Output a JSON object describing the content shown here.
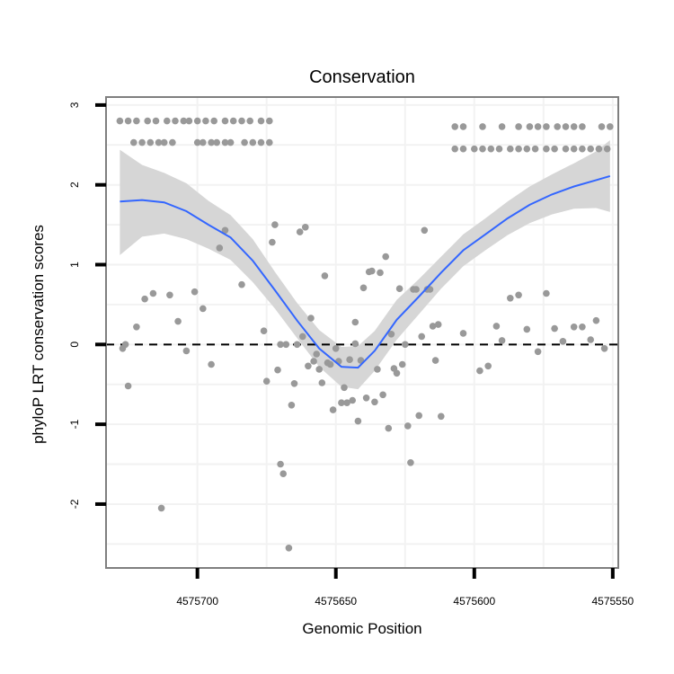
{
  "chart_data": {
    "type": "scatter",
    "title": "Conservation",
    "xlabel": "Genomic Position",
    "ylabel": "phyloP LRT conservation scores",
    "xlim": [
      4575733,
      4575548
    ],
    "ylim": [
      -2.8,
      3.1
    ],
    "x_reversed": true,
    "xticks": [
      4575700,
      4575650,
      4575600,
      4575550
    ],
    "xtick_labels": [
      "4575700",
      "4575650",
      "4575600",
      "4575550"
    ],
    "yticks": [
      -2,
      -1,
      0,
      1,
      2,
      3
    ],
    "ytick_labels": [
      "-2",
      "-1",
      "0",
      "1",
      "2",
      "3"
    ],
    "grid": true,
    "reference_line": {
      "y": 0,
      "style": "dashed"
    },
    "colors": {
      "points": "#999999",
      "smooth": "#3366ff",
      "band": "#d6d6d6",
      "grid": "#f2f2f2",
      "border": "#7f7f7f"
    },
    "series": [
      {
        "name": "scores",
        "points": [
          [
            4575728,
            2.8
          ],
          [
            4575725,
            2.8
          ],
          [
            4575722,
            2.8
          ],
          [
            4575718,
            2.8
          ],
          [
            4575715,
            2.8
          ],
          [
            4575711,
            2.8
          ],
          [
            4575708,
            2.8
          ],
          [
            4575705,
            2.8
          ],
          [
            4575703,
            2.8
          ],
          [
            4575700,
            2.8
          ],
          [
            4575697,
            2.8
          ],
          [
            4575694,
            2.8
          ],
          [
            4575690,
            2.8
          ],
          [
            4575687,
            2.8
          ],
          [
            4575684,
            2.8
          ],
          [
            4575681,
            2.8
          ],
          [
            4575677,
            2.8
          ],
          [
            4575674,
            2.8
          ],
          [
            4575723,
            2.53
          ],
          [
            4575720,
            2.53
          ],
          [
            4575717,
            2.53
          ],
          [
            4575714,
            2.53
          ],
          [
            4575712,
            2.53
          ],
          [
            4575709,
            2.53
          ],
          [
            4575700,
            2.53
          ],
          [
            4575698,
            2.53
          ],
          [
            4575695,
            2.53
          ],
          [
            4575693,
            2.53
          ],
          [
            4575690,
            2.53
          ],
          [
            4575688,
            2.53
          ],
          [
            4575683,
            2.53
          ],
          [
            4575680,
            2.53
          ],
          [
            4575677,
            2.53
          ],
          [
            4575674,
            2.53
          ],
          [
            4575607,
            2.73
          ],
          [
            4575604,
            2.73
          ],
          [
            4575597,
            2.73
          ],
          [
            4575590,
            2.73
          ],
          [
            4575584,
            2.73
          ],
          [
            4575580,
            2.73
          ],
          [
            4575577,
            2.73
          ],
          [
            4575574,
            2.73
          ],
          [
            4575570,
            2.73
          ],
          [
            4575567,
            2.73
          ],
          [
            4575564,
            2.73
          ],
          [
            4575561,
            2.73
          ],
          [
            4575554,
            2.73
          ],
          [
            4575551,
            2.73
          ],
          [
            4575607,
            2.45
          ],
          [
            4575604,
            2.45
          ],
          [
            4575600,
            2.45
          ],
          [
            4575597,
            2.45
          ],
          [
            4575594,
            2.45
          ],
          [
            4575591,
            2.45
          ],
          [
            4575587,
            2.45
          ],
          [
            4575584,
            2.45
          ],
          [
            4575581,
            2.45
          ],
          [
            4575578,
            2.45
          ],
          [
            4575574,
            2.45
          ],
          [
            4575571,
            2.45
          ],
          [
            4575567,
            2.45
          ],
          [
            4575564,
            2.45
          ],
          [
            4575561,
            2.45
          ],
          [
            4575558,
            2.45
          ],
          [
            4575555,
            2.45
          ],
          [
            4575552,
            2.45
          ],
          [
            4575727,
            -0.05
          ],
          [
            4575726,
            0.0
          ],
          [
            4575725,
            -0.52
          ],
          [
            4575722,
            0.22
          ],
          [
            4575719,
            0.57
          ],
          [
            4575716,
            0.64
          ],
          [
            4575713,
            -2.05
          ],
          [
            4575710,
            0.62
          ],
          [
            4575707,
            0.29
          ],
          [
            4575704,
            -0.08
          ],
          [
            4575701,
            0.66
          ],
          [
            4575698,
            0.45
          ],
          [
            4575695,
            -0.25
          ],
          [
            4575692,
            1.21
          ],
          [
            4575690,
            1.43
          ],
          [
            4575684,
            0.75
          ],
          [
            4575676,
            0.17
          ],
          [
            4575675,
            -0.46
          ],
          [
            4575673,
            1.28
          ],
          [
            4575672,
            1.5
          ],
          [
            4575671,
            -0.32
          ],
          [
            4575670,
            0.0
          ],
          [
            4575670,
            -1.5
          ],
          [
            4575669,
            -1.62
          ],
          [
            4575668,
            0.0
          ],
          [
            4575667,
            -2.55
          ],
          [
            4575666,
            -0.76
          ],
          [
            4575665,
            -0.49
          ],
          [
            4575664,
            0.0
          ],
          [
            4575663,
            1.41
          ],
          [
            4575662,
            0.1
          ],
          [
            4575661,
            1.47
          ],
          [
            4575660,
            -0.27
          ],
          [
            4575659,
            0.33
          ],
          [
            4575658,
            -0.21
          ],
          [
            4575657,
            -0.12
          ],
          [
            4575656,
            -0.31
          ],
          [
            4575655,
            -0.48
          ],
          [
            4575654,
            0.86
          ],
          [
            4575653,
            -0.23
          ],
          [
            4575652,
            -0.25
          ],
          [
            4575651,
            -0.82
          ],
          [
            4575650,
            -0.05
          ],
          [
            4575649,
            -0.21
          ],
          [
            4575648,
            -0.73
          ],
          [
            4575647,
            -0.54
          ],
          [
            4575646,
            -0.73
          ],
          [
            4575645,
            -0.19
          ],
          [
            4575644,
            -0.7
          ],
          [
            4575643,
            0.01
          ],
          [
            4575643,
            0.28
          ],
          [
            4575642,
            -0.96
          ],
          [
            4575641,
            -0.2
          ],
          [
            4575640,
            0.71
          ],
          [
            4575639,
            -0.67
          ],
          [
            4575638,
            0.91
          ],
          [
            4575637,
            0.92
          ],
          [
            4575636,
            -0.72
          ],
          [
            4575635,
            -0.31
          ],
          [
            4575634,
            0.9
          ],
          [
            4575633,
            -0.63
          ],
          [
            4575632,
            1.1
          ],
          [
            4575631,
            -1.05
          ],
          [
            4575630,
            0.13
          ],
          [
            4575629,
            -0.3
          ],
          [
            4575628,
            -0.36
          ],
          [
            4575627,
            0.7
          ],
          [
            4575626,
            -0.25
          ],
          [
            4575625,
            0.0
          ],
          [
            4575624,
            -1.02
          ],
          [
            4575623,
            -1.48
          ],
          [
            4575622,
            0.69
          ],
          [
            4575621,
            0.69
          ],
          [
            4575620,
            -0.89
          ],
          [
            4575619,
            0.1
          ],
          [
            4575618,
            1.43
          ],
          [
            4575617,
            0.69
          ],
          [
            4575616,
            0.69
          ],
          [
            4575615,
            0.23
          ],
          [
            4575614,
            -0.2
          ],
          [
            4575613,
            0.25
          ],
          [
            4575612,
            -0.9
          ],
          [
            4575604,
            0.14
          ],
          [
            4575598,
            -0.33
          ],
          [
            4575595,
            -0.27
          ],
          [
            4575592,
            0.23
          ],
          [
            4575590,
            0.05
          ],
          [
            4575587,
            0.58
          ],
          [
            4575584,
            0.62
          ],
          [
            4575581,
            0.19
          ],
          [
            4575577,
            -0.09
          ],
          [
            4575574,
            0.64
          ],
          [
            4575571,
            0.2
          ],
          [
            4575568,
            0.04
          ],
          [
            4575564,
            0.22
          ],
          [
            4575561,
            0.22
          ],
          [
            4575558,
            0.06
          ],
          [
            4575556,
            0.3
          ],
          [
            4575553,
            -0.05
          ]
        ]
      }
    ],
    "smooth": {
      "x": [
        4575728,
        4575720,
        4575712,
        4575704,
        4575696,
        4575688,
        4575680,
        4575672,
        4575664,
        4575656,
        4575648,
        4575642,
        4575636,
        4575628,
        4575620,
        4575612,
        4575604,
        4575596,
        4575588,
        4575580,
        4575572,
        4575564,
        4575556,
        4575551
      ],
      "y": [
        1.79,
        1.81,
        1.78,
        1.67,
        1.5,
        1.34,
        1.05,
        0.68,
        0.3,
        -0.05,
        -0.28,
        -0.29,
        -0.08,
        0.31,
        0.6,
        0.9,
        1.18,
        1.38,
        1.58,
        1.75,
        1.88,
        1.98,
        2.06,
        2.11
      ],
      "lower": [
        1.12,
        1.35,
        1.39,
        1.32,
        1.2,
        1.06,
        0.78,
        0.45,
        0.08,
        -0.28,
        -0.53,
        -0.56,
        -0.33,
        0.06,
        0.38,
        0.7,
        0.98,
        1.18,
        1.37,
        1.52,
        1.63,
        1.7,
        1.71,
        1.66
      ],
      "upper": [
        2.44,
        2.25,
        2.15,
        2.02,
        1.8,
        1.62,
        1.32,
        0.91,
        0.52,
        0.18,
        -0.03,
        -0.02,
        0.17,
        0.56,
        0.82,
        1.1,
        1.38,
        1.58,
        1.79,
        1.98,
        2.13,
        2.27,
        2.42,
        2.56
      ]
    }
  }
}
